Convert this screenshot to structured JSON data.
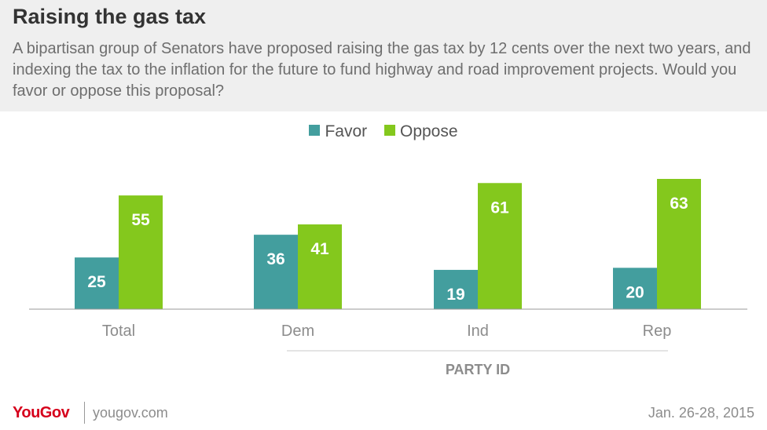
{
  "header": {
    "title": "Raising the gas tax",
    "subtitle": "A bipartisan group of Senators have proposed raising the gas tax by 12 cents over the next two years, and indexing the tax to the inflation for the future to fund highway and road improvement projects. Would you favor or oppose this proposal?"
  },
  "colors": {
    "favor": "#439e9e",
    "oppose": "#84c81d",
    "label": "#ffffff",
    "axis": "#8c8c8c",
    "brand": "#d6001c"
  },
  "chart_data": {
    "type": "bar",
    "categories": [
      "Total",
      "Dem",
      "Ind",
      "Rep"
    ],
    "series": [
      {
        "name": "Favor",
        "values": [
          25,
          36,
          19,
          20
        ]
      },
      {
        "name": "Oppose",
        "values": [
          55,
          41,
          61,
          63
        ]
      }
    ],
    "group_label": "PARTY ID",
    "legend_position": "top-center",
    "grid": false,
    "ylim": [
      0,
      63
    ]
  },
  "footer": {
    "logo": "YouGov",
    "site": "yougov.com",
    "date": "Jan. 26-28, 2015"
  }
}
